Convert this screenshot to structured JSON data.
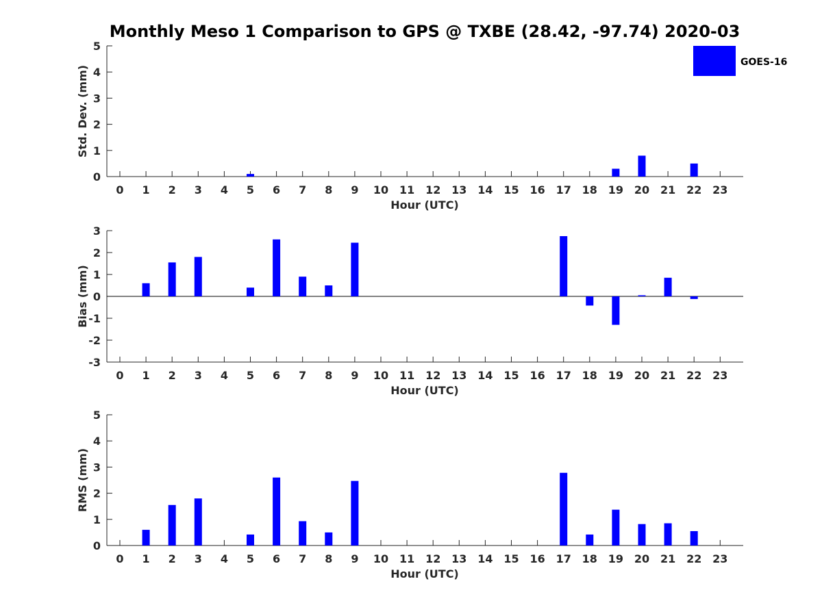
{
  "title": "Monthly Meso 1 Comparison to GPS @ TXBE (28.42, -97.74) 2020-03",
  "legend": {
    "label": "GOES-16",
    "color": "#0000ff",
    "position": "top-right"
  },
  "chart_data": [
    {
      "type": "bar",
      "ylabel": "Std. Dev. (mm)",
      "xlabel": "Hour (UTC)",
      "categories": [
        "0",
        "1",
        "2",
        "3",
        "4",
        "5",
        "6",
        "7",
        "8",
        "9",
        "10",
        "11",
        "12",
        "13",
        "14",
        "15",
        "16",
        "17",
        "18",
        "19",
        "20",
        "21",
        "22",
        "23"
      ],
      "series": [
        {
          "name": "GOES-16",
          "color": "#0000ff",
          "values": [
            null,
            null,
            null,
            null,
            null,
            0.1,
            null,
            null,
            null,
            null,
            null,
            null,
            null,
            null,
            null,
            null,
            null,
            null,
            null,
            0.3,
            0.8,
            null,
            0.5,
            null
          ]
        }
      ],
      "ylim": [
        0,
        5
      ],
      "yticks": [
        0,
        1,
        2,
        3,
        4,
        5
      ],
      "grid": false
    },
    {
      "type": "bar",
      "ylabel": "Bias (mm)",
      "xlabel": "Hour (UTC)",
      "categories": [
        "0",
        "1",
        "2",
        "3",
        "4",
        "5",
        "6",
        "7",
        "8",
        "9",
        "10",
        "11",
        "12",
        "13",
        "14",
        "15",
        "16",
        "17",
        "18",
        "19",
        "20",
        "21",
        "22",
        "23"
      ],
      "series": [
        {
          "name": "GOES-16",
          "color": "#0000ff",
          "values": [
            null,
            0.6,
            1.55,
            1.8,
            null,
            0.4,
            2.6,
            0.9,
            0.5,
            2.45,
            null,
            null,
            null,
            null,
            null,
            null,
            null,
            2.75,
            -0.42,
            -1.3,
            0.05,
            0.85,
            -0.12,
            null
          ]
        }
      ],
      "ylim": [
        -3,
        3
      ],
      "yticks": [
        -3,
        -2,
        -1,
        0,
        1,
        2,
        3
      ],
      "zero_line": true,
      "grid": false
    },
    {
      "type": "bar",
      "ylabel": "RMS (mm)",
      "xlabel": "Hour (UTC)",
      "categories": [
        "0",
        "1",
        "2",
        "3",
        "4",
        "5",
        "6",
        "7",
        "8",
        "9",
        "10",
        "11",
        "12",
        "13",
        "14",
        "15",
        "16",
        "17",
        "18",
        "19",
        "20",
        "21",
        "22",
        "23"
      ],
      "series": [
        {
          "name": "GOES-16",
          "color": "#0000ff",
          "values": [
            null,
            0.6,
            1.55,
            1.8,
            null,
            0.42,
            2.6,
            0.93,
            0.5,
            2.47,
            null,
            null,
            null,
            null,
            null,
            null,
            null,
            2.78,
            0.42,
            1.37,
            0.82,
            0.85,
            0.55,
            null
          ]
        }
      ],
      "ylim": [
        0,
        5
      ],
      "yticks": [
        0,
        1,
        2,
        3,
        4,
        5
      ],
      "grid": false
    }
  ]
}
